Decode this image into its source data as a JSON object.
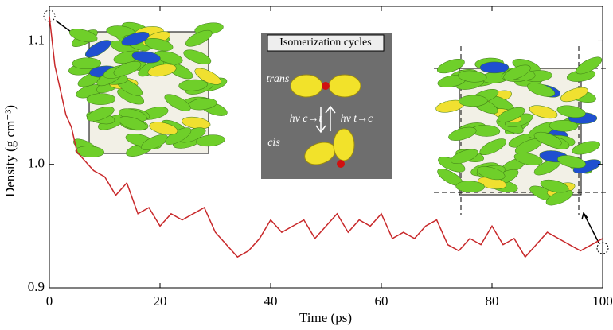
{
  "chart_data": {
    "type": "line",
    "xlabel": "Time (ps)",
    "ylabel": "Density (g cm⁻³)",
    "x": [
      0,
      1,
      2,
      3,
      4,
      5,
      6,
      7,
      8,
      10,
      12,
      14,
      16,
      18,
      20,
      22,
      24,
      26,
      28,
      30,
      32,
      34,
      36,
      38,
      40,
      42,
      44,
      46,
      48,
      50,
      52,
      54,
      56,
      58,
      60,
      62,
      64,
      66,
      68,
      70,
      72,
      74,
      76,
      78,
      80,
      82,
      84,
      86,
      88,
      90,
      92,
      94,
      96,
      98,
      100
    ],
    "series": [
      {
        "name": "Density",
        "color": "#c8282a",
        "values": [
          1.12,
          1.08,
          1.06,
          1.04,
          1.03,
          1.01,
          1.005,
          1.0,
          0.995,
          0.99,
          0.975,
          0.985,
          0.96,
          0.965,
          0.95,
          0.96,
          0.955,
          0.96,
          0.965,
          0.945,
          0.935,
          0.925,
          0.93,
          0.94,
          0.955,
          0.945,
          0.95,
          0.955,
          0.94,
          0.95,
          0.96,
          0.945,
          0.955,
          0.95,
          0.96,
          0.94,
          0.945,
          0.94,
          0.95,
          0.955,
          0.935,
          0.93,
          0.94,
          0.935,
          0.95,
          0.935,
          0.94,
          0.925,
          0.935,
          0.945,
          0.94,
          0.935,
          0.93,
          0.935,
          0.94
        ]
      }
    ],
    "xlim": [
      0,
      100
    ],
    "ylim": [
      0.9,
      1.128
    ],
    "xticks": [
      0,
      20,
      40,
      60,
      80,
      100
    ],
    "yticks": [
      0.9,
      {
        "value": 1,
        "label": "1.0"
      },
      1.1
    ],
    "annotations": [
      "Isomerization cycles",
      "trans",
      "cis",
      "hν c→t",
      "hν t→c"
    ]
  }
}
